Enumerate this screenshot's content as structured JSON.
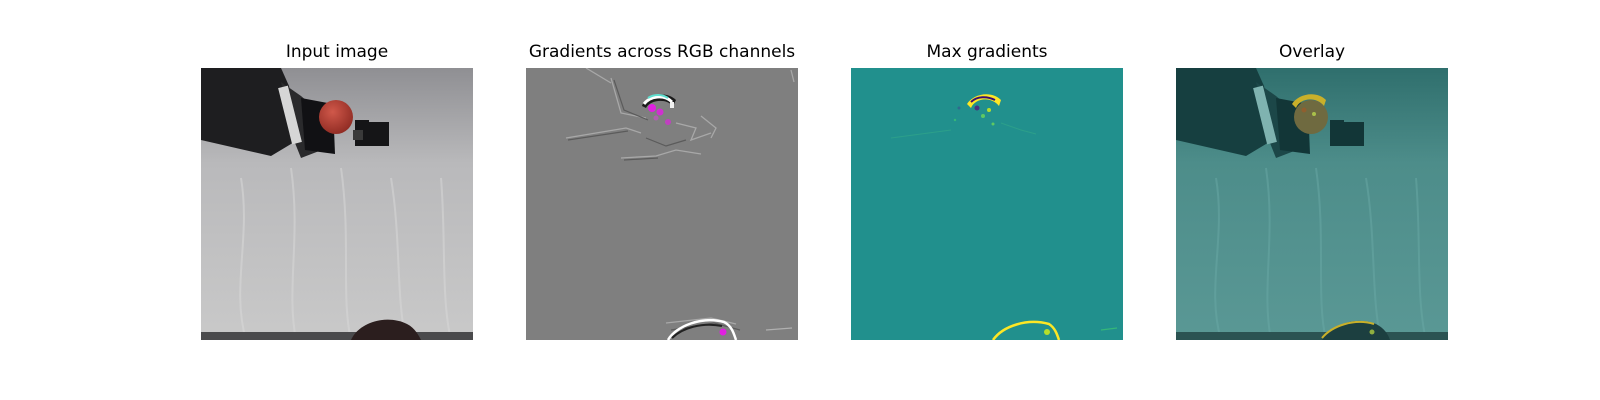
{
  "panels": [
    {
      "title": "Input image"
    },
    {
      "title": "Gradients across RGB channels"
    },
    {
      "title": "Max gradients"
    },
    {
      "title": "Overlay"
    }
  ],
  "colors": {
    "gradient_background": "#7f7f7f",
    "max_gradient_background": "#21908d",
    "overlay_tint": "#2e7f7c",
    "highlight_yellow": "#fde725",
    "highlight_magenta": "#e020e0",
    "ball_red": "#b4382e"
  }
}
